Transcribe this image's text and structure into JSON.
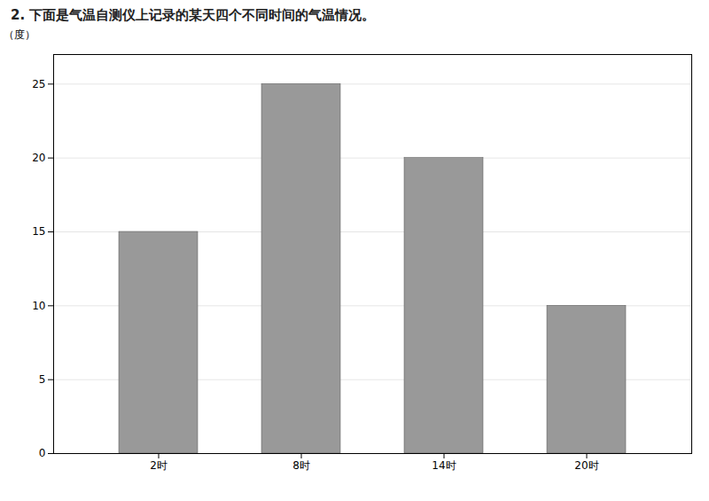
{
  "chart_data": {
    "type": "bar",
    "title": "2. 下面是气温自测仪上记录的某天四个不同时间的气温情况。",
    "ylabel": "（度）",
    "categories": [
      "2时",
      "8时",
      "14时",
      "20时"
    ],
    "values": [
      15,
      25,
      20,
      10
    ],
    "color": "#999999",
    "ylim": [
      0,
      27
    ],
    "yticks": [
      0,
      5,
      10,
      15,
      20,
      25
    ],
    "grid": true
  }
}
